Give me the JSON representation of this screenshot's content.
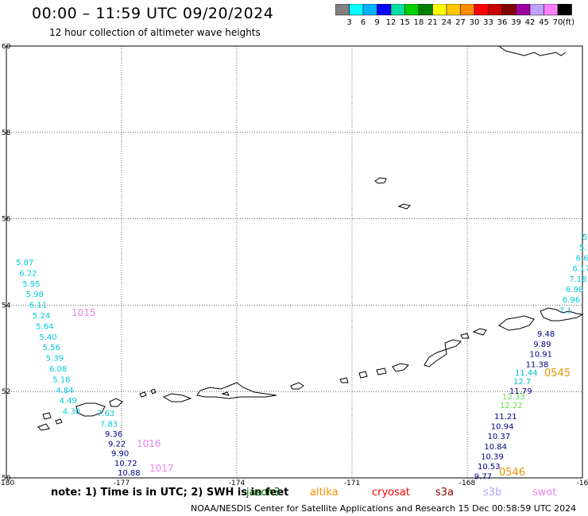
{
  "header": {
    "title": "00:00 – 11:59 UTC 09/20/2024",
    "subtitle": "12 hour collection of altimeter wave heights"
  },
  "colorbar": {
    "labels": [
      "3",
      "6",
      "9",
      "12",
      "15",
      "18",
      "21",
      "24",
      "27",
      "30",
      "33",
      "36",
      "39",
      "42",
      "45",
      "70"
    ],
    "unit": "(ft)",
    "colors": [
      "#7f7f7f",
      "#00ffff",
      "#00b2ff",
      "#0000ff",
      "#00e0a0",
      "#00d000",
      "#008000",
      "#ffff00",
      "#ffc800",
      "#ff8c00",
      "#ff0000",
      "#c80000",
      "#800000",
      "#a000a0",
      "#c0a0ff",
      "#ff80ff",
      "#000000"
    ]
  },
  "map": {
    "lon_ticks": [
      "-180",
      "-177",
      "-174",
      "-171",
      "-168",
      "-16"
    ],
    "lat_ticks": [
      "60",
      "58",
      "56",
      "54",
      "52",
      "50"
    ],
    "lon_range": [
      -180,
      -165
    ],
    "lat_range": [
      50,
      60
    ]
  },
  "tracks": {
    "west_cyan": [
      "5.87",
      "6.22",
      "5.95",
      "5.98",
      "6.11",
      "5.24",
      "5.64",
      "5.40",
      "5.56",
      "5.39",
      "6.08",
      "5.18",
      "4.84",
      "4.49",
      "4.30"
    ],
    "west_lower_cyan": [
      "7.63",
      "7.83"
    ],
    "west_lower_blue": [
      "9.36",
      "9.22",
      "9.90",
      "10.72",
      "10.88"
    ],
    "east_cyan": [
      "5",
      "5.1",
      "6.6",
      "6.17",
      "7.18",
      "6.98",
      "6.96",
      "7.1"
    ],
    "east_blue_upper": [
      "9.48",
      "9.89",
      "10.91",
      "11.38"
    ],
    "east_cyan2": [
      "11.44",
      "12.7"
    ],
    "east_blue_mid": [
      "11.79"
    ],
    "east_green": [
      "12.33",
      "12.22"
    ],
    "east_blue_lower": [
      "11.21",
      "10.94",
      "10.37",
      "10.84",
      "10.39",
      "10.53",
      "9.77"
    ],
    "time_labels": [
      {
        "text": "1015",
        "color": "#ee82ee"
      },
      {
        "text": "1016",
        "color": "#ee82ee"
      },
      {
        "text": "1017",
        "color": "#ee82ee"
      },
      {
        "text": "0545",
        "color": "#e69500"
      },
      {
        "text": "0546",
        "color": "#e69500"
      }
    ]
  },
  "footer": {
    "note": "note:  1) Time is in UTC; 2) SWH is in feet",
    "legend": [
      {
        "label": "jason3",
        "color": "#006400"
      },
      {
        "label": "altika",
        "color": "#ff8c00"
      },
      {
        "label": "cryosat",
        "color": "#ff0000"
      },
      {
        "label": "s3a",
        "color": "#8b0000"
      },
      {
        "label": "s3b",
        "color": "#b0a0ff"
      },
      {
        "label": "swot",
        "color": "#ee82ee"
      }
    ],
    "credit": "NOAA/NESDIS Center for Satellite Applications and Research    15 Dec 00:58:59 UTC 2024"
  }
}
